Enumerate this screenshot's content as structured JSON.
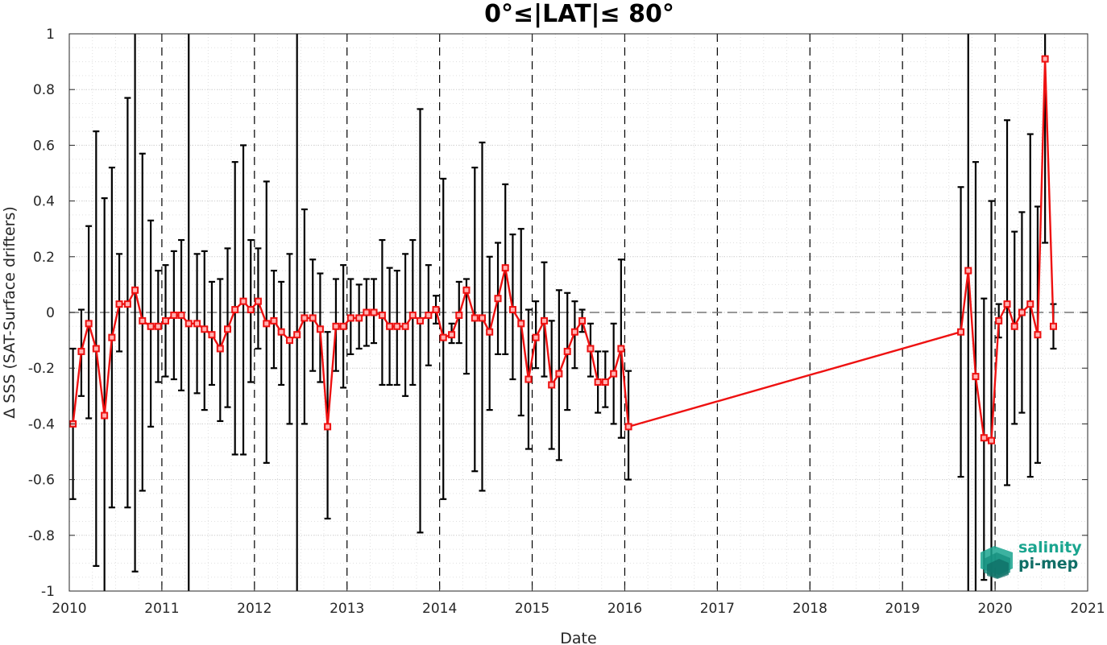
{
  "chart_data": {
    "type": "line",
    "title": "0°≤|LAT|≤ 80°",
    "xlabel": "Date",
    "ylabel": "Δ SSS (SAT-Surface drifters)",
    "xlim": [
      2010,
      2021
    ],
    "ylim": [
      -1,
      1
    ],
    "x_ticks": [
      2010,
      2011,
      2012,
      2013,
      2014,
      2015,
      2016,
      2017,
      2018,
      2019,
      2020,
      2021
    ],
    "x_tick_labels": [
      "2010",
      "2011",
      "2012",
      "2013",
      "2014",
      "2015",
      "2016",
      "2017",
      "2018",
      "2019",
      "2020",
      "2021"
    ],
    "y_ticks": [
      1,
      0.8,
      0.6,
      0.4,
      0.2,
      0,
      -0.2,
      -0.4,
      -0.6,
      -0.8,
      -1
    ],
    "y_tick_labels": [
      "1",
      "0.8",
      "0.6",
      "0.4",
      "0.2",
      "0",
      "-0.2",
      "-0.4",
      "-0.6",
      "-0.8",
      "-1"
    ],
    "grid": true,
    "year_lines": "dashed vertical at each year",
    "zero_line": "dashed horizontal at 0",
    "series": [
      {
        "color": "#ee1111",
        "marker": "square",
        "x": [
          2010.04,
          2010.13,
          2010.21,
          2010.29,
          2010.38,
          2010.46,
          2010.54,
          2010.63,
          2010.71,
          2010.79,
          2010.88,
          2010.96,
          2011.04,
          2011.13,
          2011.21,
          2011.29,
          2011.38,
          2011.46,
          2011.54,
          2011.63,
          2011.71,
          2011.79,
          2011.88,
          2011.96,
          2012.04,
          2012.13,
          2012.21,
          2012.29,
          2012.38,
          2012.46,
          2012.54,
          2012.63,
          2012.71,
          2012.79,
          2012.88,
          2012.96,
          2013.04,
          2013.13,
          2013.21,
          2013.29,
          2013.38,
          2013.46,
          2013.54,
          2013.63,
          2013.71,
          2013.79,
          2013.88,
          2013.96,
          2014.04,
          2014.13,
          2014.21,
          2014.29,
          2014.38,
          2014.46,
          2014.54,
          2014.63,
          2014.71,
          2014.79,
          2014.88,
          2014.96,
          2015.04,
          2015.13,
          2015.21,
          2015.29,
          2015.38,
          2015.46,
          2015.54,
          2015.63,
          2015.71,
          2015.79,
          2015.88,
          2015.96,
          2016.04,
          2019.63,
          2019.71,
          2019.79,
          2019.88,
          2019.96,
          2020.04,
          2020.13,
          2020.21,
          2020.29,
          2020.38,
          2020.46,
          2020.54,
          2020.63
        ],
        "values": [
          -0.4,
          -0.14,
          -0.04,
          -0.13,
          -0.37,
          -0.09,
          0.03,
          0.03,
          0.08,
          -0.03,
          -0.05,
          -0.05,
          -0.03,
          -0.01,
          -0.01,
          -0.04,
          -0.04,
          -0.06,
          -0.08,
          -0.13,
          -0.06,
          0.01,
          0.04,
          0.01,
          0.04,
          -0.04,
          -0.03,
          -0.07,
          -0.1,
          -0.08,
          -0.02,
          -0.02,
          -0.06,
          -0.41,
          -0.05,
          -0.05,
          -0.02,
          -0.02,
          0.0,
          0.0,
          -0.01,
          -0.05,
          -0.05,
          -0.05,
          -0.01,
          -0.03,
          -0.01,
          0.01,
          -0.09,
          -0.08,
          -0.01,
          0.08,
          -0.02,
          -0.02,
          -0.07,
          0.05,
          0.16,
          0.01,
          -0.04,
          -0.24,
          -0.09,
          -0.03,
          -0.26,
          -0.22,
          -0.14,
          -0.07,
          -0.03,
          -0.13,
          -0.25,
          -0.25,
          -0.22,
          -0.13,
          -0.41,
          -0.07,
          0.15,
          -0.23,
          -0.45,
          -0.46,
          -0.03,
          0.03,
          -0.05,
          0.0,
          0.03,
          -0.08,
          0.91,
          -0.05
        ],
        "err_low": [
          -0.67,
          -0.3,
          -0.38,
          -0.91,
          -1.0,
          -0.7,
          -0.14,
          -0.7,
          -0.93,
          -0.64,
          -0.41,
          -0.25,
          -0.23,
          -0.24,
          -0.28,
          -1.0,
          -0.29,
          -0.35,
          -0.26,
          -0.39,
          -0.34,
          -0.51,
          -0.51,
          -0.25,
          -0.13,
          -0.54,
          -0.2,
          -0.26,
          -0.4,
          -1.0,
          -0.4,
          -0.21,
          -0.25,
          -0.74,
          -0.21,
          -0.27,
          -0.15,
          -0.13,
          -0.12,
          -0.11,
          -0.26,
          -0.26,
          -0.26,
          -0.3,
          -0.26,
          -0.79,
          -0.19,
          -0.04,
          -0.67,
          -0.11,
          -0.11,
          -0.22,
          -0.57,
          -0.64,
          -0.35,
          -0.15,
          -0.15,
          -0.24,
          -0.37,
          -0.49,
          -0.2,
          -0.23,
          -0.49,
          -0.53,
          -0.35,
          -0.2,
          -0.07,
          -0.23,
          -0.36,
          -0.34,
          -0.4,
          -0.45,
          -0.6,
          -0.59,
          -1.0,
          -1.0,
          -0.96,
          -1.0,
          -0.09,
          -0.62,
          -0.4,
          -0.36,
          -0.59,
          -0.54,
          0.25,
          -0.13
        ],
        "err_high": [
          -0.13,
          0.01,
          0.31,
          0.65,
          0.41,
          0.52,
          0.21,
          0.77,
          1.0,
          0.57,
          0.33,
          0.15,
          0.17,
          0.22,
          0.26,
          1.0,
          0.21,
          0.22,
          0.11,
          0.12,
          0.23,
          0.54,
          0.6,
          0.26,
          0.23,
          0.47,
          0.15,
          0.11,
          0.21,
          1.0,
          0.37,
          0.19,
          0.14,
          -0.07,
          0.12,
          0.17,
          0.12,
          0.1,
          0.12,
          0.12,
          0.26,
          0.16,
          0.15,
          0.21,
          0.26,
          0.73,
          0.17,
          0.06,
          0.48,
          -0.04,
          0.11,
          0.12,
          0.52,
          0.61,
          0.2,
          0.25,
          0.46,
          0.28,
          0.3,
          0.01,
          0.04,
          0.18,
          -0.03,
          0.08,
          0.07,
          0.04,
          0.01,
          -0.04,
          -0.14,
          -0.14,
          -0.04,
          0.19,
          -0.21,
          0.45,
          1.0,
          0.54,
          0.05,
          0.4,
          0.03,
          0.69,
          0.29,
          0.36,
          0.64,
          0.38,
          1.0,
          0.03
        ]
      }
    ]
  },
  "logo": {
    "line1": "salinity",
    "line2": "pi-mep",
    "color_primary": "#1aa58f",
    "color_secondary": "#0f6e66"
  },
  "colors": {
    "series": "#ee1111",
    "errorbar": "#000000",
    "axis": "#262626",
    "grid": "#d9d9d9"
  }
}
